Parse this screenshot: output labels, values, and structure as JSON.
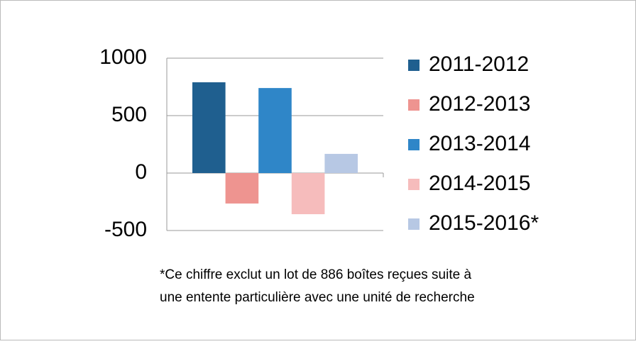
{
  "chart_data": {
    "type": "bar",
    "series": [
      {
        "name": "2011-2012",
        "color": "#1f5f8f",
        "values": [
          790
        ]
      },
      {
        "name": "2012-2013",
        "color": "#ee9490",
        "values": [
          -265
        ]
      },
      {
        "name": "2013-2014",
        "color": "#2f86c8",
        "values": [
          740
        ]
      },
      {
        "name": "2014-2015",
        "color": "#f6bcbc",
        "values": [
          -358
        ]
      },
      {
        "name": "2015-2016*",
        "color": "#b7c8e4",
        "values": [
          167
        ]
      }
    ],
    "ylim": [
      -500,
      1000
    ],
    "yticks": [
      -500,
      0,
      500,
      1000
    ],
    "grid": true,
    "legend": "right",
    "note": [
      "*Ce chiffre exclut un lot de 886  boîtes reçues suite à",
      "une entente particulière avec une unité de recherche"
    ]
  }
}
